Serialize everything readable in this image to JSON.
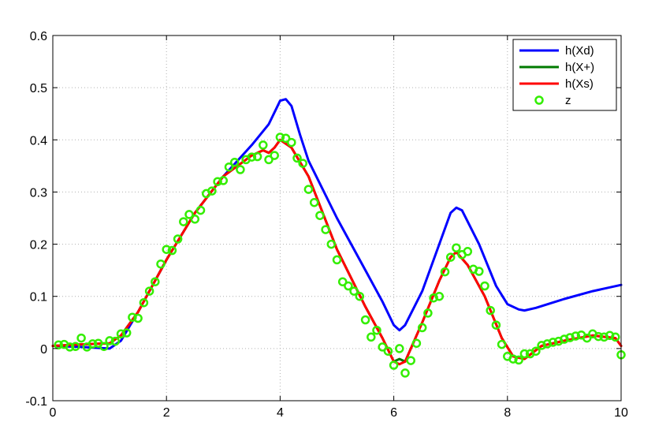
{
  "chart_data": {
    "type": "line",
    "title": "",
    "xlabel": "",
    "ylabel": "",
    "xlim": [
      0,
      10
    ],
    "ylim": [
      -0.1,
      0.6
    ],
    "xticks": [
      0,
      2,
      4,
      6,
      8,
      10
    ],
    "yticks": [
      -0.1,
      0,
      0.1,
      0.2,
      0.3,
      0.4,
      0.5,
      0.6
    ],
    "xtick_labels": [
      "0",
      "2",
      "4",
      "6",
      "8",
      "10"
    ],
    "ytick_labels": [
      "-0.1",
      "0",
      "0.1",
      "0.2",
      "0.3",
      "0.4",
      "0.5",
      "0.6"
    ],
    "grid": true,
    "legend_position": "top-right",
    "series": [
      {
        "name": "h(Xd)",
        "style": "line",
        "color": "#0000ff",
        "x": [
          0,
          0.5,
          1.0,
          1.2,
          1.5,
          2.0,
          2.5,
          3.0,
          3.5,
          3.8,
          4.0,
          4.1,
          4.2,
          4.35,
          4.5,
          5.0,
          5.5,
          5.8,
          6.0,
          6.1,
          6.2,
          6.5,
          6.8,
          7.0,
          7.1,
          7.2,
          7.5,
          7.8,
          8.0,
          8.2,
          8.3,
          8.5,
          9.0,
          9.5,
          10.0
        ],
        "y": [
          0.005,
          0.003,
          0.0,
          0.015,
          0.07,
          0.17,
          0.26,
          0.33,
          0.39,
          0.43,
          0.475,
          0.478,
          0.465,
          0.41,
          0.36,
          0.25,
          0.15,
          0.09,
          0.045,
          0.035,
          0.045,
          0.11,
          0.2,
          0.26,
          0.27,
          0.265,
          0.2,
          0.12,
          0.085,
          0.075,
          0.073,
          0.078,
          0.095,
          0.11,
          0.122
        ]
      },
      {
        "name": "h(X+)",
        "style": "line",
        "color": "#007a00",
        "x": [
          0,
          0.5,
          1.0,
          1.2,
          1.5,
          2.0,
          2.5,
          3.0,
          3.5,
          3.7,
          3.8,
          3.9,
          4.0,
          4.2,
          4.5,
          5.0,
          5.5,
          5.8,
          6.0,
          6.1,
          6.2,
          6.5,
          6.8,
          7.0,
          7.1,
          7.3,
          7.6,
          7.9,
          8.1,
          8.3,
          8.6,
          9.0,
          9.5,
          9.9,
          10.0
        ],
        "y": [
          0.005,
          0.008,
          0.01,
          0.025,
          0.07,
          0.17,
          0.26,
          0.33,
          0.37,
          0.38,
          0.375,
          0.385,
          0.4,
          0.385,
          0.33,
          0.19,
          0.08,
          0.02,
          -0.025,
          -0.02,
          -0.025,
          0.05,
          0.13,
          0.175,
          0.185,
          0.16,
          0.1,
          0.02,
          -0.015,
          -0.02,
          0.005,
          0.015,
          0.025,
          0.02,
          0.005
        ]
      },
      {
        "name": "h(Xs)",
        "style": "line",
        "color": "#ff0000",
        "x": [
          0,
          0.5,
          1.0,
          1.2,
          1.5,
          2.0,
          2.5,
          3.0,
          3.5,
          3.7,
          3.8,
          3.9,
          4.0,
          4.2,
          4.5,
          5.0,
          5.5,
          5.8,
          6.0,
          6.1,
          6.2,
          6.5,
          6.8,
          7.0,
          7.1,
          7.3,
          7.6,
          7.9,
          8.1,
          8.3,
          8.6,
          9.0,
          9.5,
          9.9,
          10.0
        ],
        "y": [
          0.005,
          0.008,
          0.01,
          0.025,
          0.07,
          0.17,
          0.26,
          0.33,
          0.37,
          0.38,
          0.375,
          0.385,
          0.4,
          0.385,
          0.33,
          0.19,
          0.08,
          0.02,
          -0.025,
          -0.03,
          -0.025,
          0.05,
          0.13,
          0.175,
          0.185,
          0.16,
          0.1,
          0.02,
          -0.015,
          -0.02,
          0.005,
          0.015,
          0.025,
          0.02,
          0.005
        ]
      },
      {
        "name": "z",
        "style": "markers",
        "marker": "o",
        "color": "#33ee00",
        "x": [
          0.1,
          0.2,
          0.3,
          0.4,
          0.5,
          0.6,
          0.7,
          0.8,
          0.9,
          1.0,
          1.1,
          1.2,
          1.3,
          1.4,
          1.5,
          1.6,
          1.7,
          1.8,
          1.9,
          2.0,
          2.1,
          2.2,
          2.3,
          2.4,
          2.5,
          2.6,
          2.7,
          2.8,
          2.9,
          3.0,
          3.1,
          3.2,
          3.3,
          3.4,
          3.5,
          3.6,
          3.7,
          3.8,
          3.9,
          4.0,
          4.1,
          4.2,
          4.3,
          4.4,
          4.5,
          4.6,
          4.7,
          4.8,
          4.9,
          5.0,
          5.1,
          5.2,
          5.3,
          5.4,
          5.5,
          5.6,
          5.7,
          5.8,
          5.9,
          6.0,
          6.1,
          6.2,
          6.3,
          6.4,
          6.5,
          6.6,
          6.7,
          6.8,
          6.9,
          7.0,
          7.1,
          7.2,
          7.3,
          7.4,
          7.5,
          7.6,
          7.7,
          7.8,
          7.9,
          8.0,
          8.1,
          8.2,
          8.3,
          8.4,
          8.5,
          8.6,
          8.7,
          8.8,
          8.9,
          9.0,
          9.1,
          9.2,
          9.3,
          9.4,
          9.5,
          9.6,
          9.7,
          9.8,
          9.9,
          10.0
        ],
        "y": [
          0.007,
          0.008,
          0.003,
          0.004,
          0.02,
          0.003,
          0.009,
          0.01,
          0.004,
          0.015,
          0.014,
          0.028,
          0.03,
          0.06,
          0.058,
          0.088,
          0.11,
          0.128,
          0.162,
          0.19,
          0.188,
          0.21,
          0.243,
          0.257,
          0.248,
          0.265,
          0.297,
          0.302,
          0.32,
          0.322,
          0.348,
          0.357,
          0.343,
          0.362,
          0.367,
          0.368,
          0.39,
          0.362,
          0.37,
          0.405,
          0.403,
          0.395,
          0.365,
          0.355,
          0.305,
          0.28,
          0.255,
          0.228,
          0.2,
          0.17,
          0.128,
          0.12,
          0.11,
          0.1,
          0.055,
          0.022,
          0.035,
          0.003,
          -0.005,
          -0.032,
          0.0,
          -0.047,
          -0.023,
          0.01,
          0.04,
          0.068,
          0.097,
          0.1,
          0.147,
          0.175,
          0.193,
          0.18,
          0.186,
          0.152,
          0.148,
          0.12,
          0.073,
          0.045,
          0.008,
          -0.015,
          -0.02,
          -0.022,
          -0.01,
          -0.01,
          -0.005,
          0.006,
          0.009,
          0.012,
          0.014,
          0.018,
          0.021,
          0.024,
          0.026,
          0.02,
          0.028,
          0.023,
          0.022,
          0.025,
          0.022,
          -0.012
        ]
      }
    ]
  }
}
